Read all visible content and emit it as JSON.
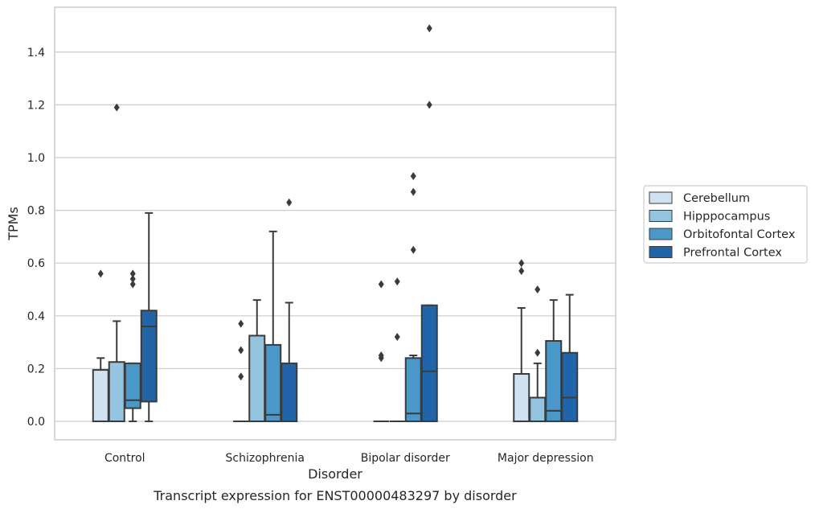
{
  "chart_data": {
    "type": "boxplot",
    "xlabel": "Disorder",
    "ylabel": "TPMs",
    "caption": "Transcript expression for ENST00000483297 by disorder",
    "ylim": [
      -0.07,
      1.57
    ],
    "yticks": [
      0.0,
      0.2,
      0.4,
      0.6,
      0.8,
      1.0,
      1.2,
      1.4
    ],
    "ytick_labels": [
      "0.0",
      "0.2",
      "0.4",
      "0.6",
      "0.8",
      "1.0",
      "1.2",
      "1.4"
    ],
    "grid": "horizontal",
    "legend_placement": "right, outside plot",
    "categories": [
      "Control",
      "Schizophrenia",
      "Bipolar disorder",
      "Major depression"
    ],
    "series": [
      {
        "name": "Cerebellum",
        "color": "#d0e1f2",
        "boxes": [
          {
            "whislo": 0.0,
            "q1": 0.0,
            "med": 0.0,
            "q3": 0.195,
            "whishi": 0.24,
            "fliers": [
              0.56
            ]
          },
          {
            "whislo": 0.0,
            "q1": 0.0,
            "med": 0.0,
            "q3": 0.0,
            "whishi": 0.0,
            "fliers": [
              0.17,
              0.27,
              0.37
            ]
          },
          {
            "whislo": 0.0,
            "q1": 0.0,
            "med": 0.0,
            "q3": 0.0,
            "whishi": 0.0,
            "fliers": [
              0.24,
              0.25,
              0.52
            ]
          },
          {
            "whislo": 0.0,
            "q1": 0.0,
            "med": 0.0,
            "q3": 0.18,
            "whishi": 0.43,
            "fliers": [
              0.57,
              0.6
            ]
          }
        ]
      },
      {
        "name": "Hipppocampus",
        "color": "#94c4df",
        "boxes": [
          {
            "whislo": 0.0,
            "q1": 0.0,
            "med": 0.0,
            "q3": 0.225,
            "whishi": 0.38,
            "fliers": [
              1.19
            ]
          },
          {
            "whislo": 0.0,
            "q1": 0.0,
            "med": 0.0,
            "q3": 0.325,
            "whishi": 0.46,
            "fliers": []
          },
          {
            "whislo": 0.0,
            "q1": 0.0,
            "med": 0.0,
            "q3": 0.0,
            "whishi": 0.0,
            "fliers": [
              0.32,
              0.53
            ]
          },
          {
            "whislo": 0.0,
            "q1": 0.0,
            "med": 0.0,
            "q3": 0.09,
            "whishi": 0.22,
            "fliers": [
              0.26,
              0.5
            ]
          }
        ]
      },
      {
        "name": "Orbitofontal Cortex",
        "color": "#4a98c9",
        "boxes": [
          {
            "whislo": 0.0,
            "q1": 0.05,
            "med": 0.08,
            "q3": 0.22,
            "whishi": 0.22,
            "fliers": [
              0.52,
              0.54,
              0.56
            ]
          },
          {
            "whislo": 0.0,
            "q1": 0.0,
            "med": 0.025,
            "q3": 0.29,
            "whishi": 0.72,
            "fliers": []
          },
          {
            "whislo": 0.0,
            "q1": 0.0,
            "med": 0.03,
            "q3": 0.24,
            "whishi": 0.25,
            "fliers": [
              0.65,
              0.87,
              0.93
            ]
          },
          {
            "whislo": 0.0,
            "q1": 0.0,
            "med": 0.04,
            "q3": 0.305,
            "whishi": 0.46,
            "fliers": []
          }
        ]
      },
      {
        "name": "Prefrontal Cortex",
        "color": "#2165a8",
        "boxes": [
          {
            "whislo": 0.0,
            "q1": 0.075,
            "med": 0.36,
            "q3": 0.42,
            "whishi": 0.79,
            "fliers": []
          },
          {
            "whislo": 0.0,
            "q1": 0.0,
            "med": 0.0,
            "q3": 0.22,
            "whishi": 0.45,
            "fliers": [
              0.83
            ]
          },
          {
            "whislo": 0.0,
            "q1": 0.0,
            "med": 0.19,
            "q3": 0.44,
            "whishi": 0.44,
            "fliers": [
              1.2,
              1.49
            ]
          },
          {
            "whislo": 0.0,
            "q1": 0.0,
            "med": 0.09,
            "q3": 0.26,
            "whishi": 0.48,
            "fliers": []
          }
        ]
      }
    ]
  }
}
